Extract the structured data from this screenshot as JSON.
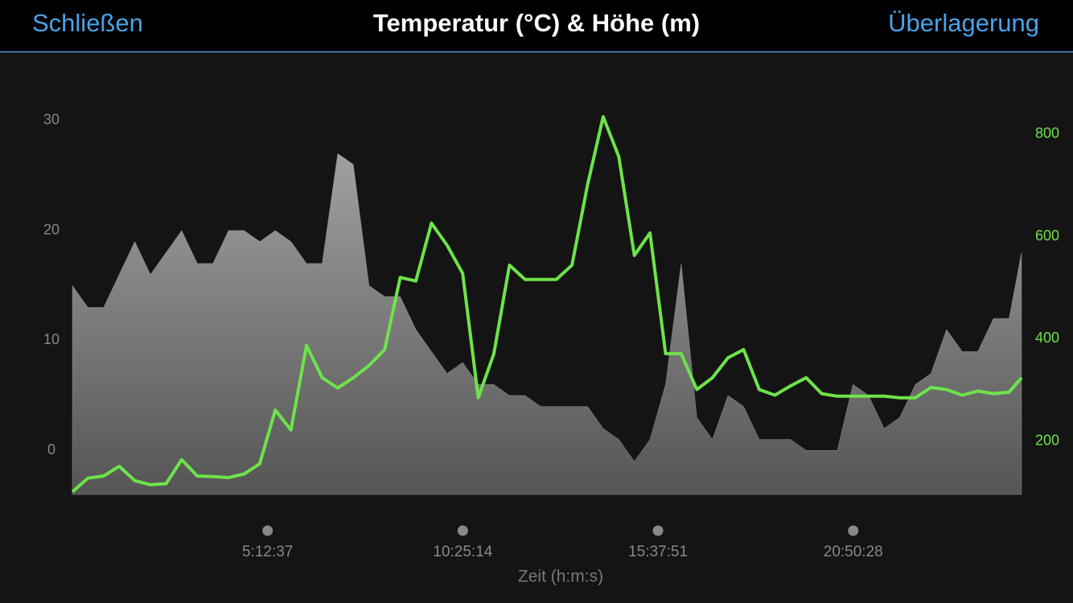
{
  "header": {
    "close": "Schließen",
    "overlay": "Überlagerung"
  },
  "chart_data": {
    "type": "line",
    "title": "Temperatur (°C) & Höhe (m)",
    "x_label": "Zeit (h:m:s)",
    "x": [
      0,
      1500,
      3000,
      4500,
      6000,
      7500,
      9000,
      10500,
      12000,
      13500,
      15000,
      16500,
      18000,
      19500,
      21000,
      22500,
      24000,
      25500,
      27000,
      28500,
      30000,
      31500,
      33000,
      34500,
      36000,
      37500,
      39000,
      40500,
      42000,
      43500,
      45000,
      46500,
      48000,
      49500,
      51000,
      52500,
      54000,
      55500,
      57000,
      58500,
      60000,
      61500,
      63000,
      64500,
      66000,
      67500,
      69000,
      70500,
      72000,
      73500,
      75000,
      76500,
      78000,
      79500,
      81000,
      82500,
      84000,
      85500,
      87000,
      88500,
      90000,
      91200
    ],
    "series": [
      {
        "type": "area",
        "color": "#8c8c8c",
        "values": [
          15,
          13,
          13,
          16,
          19,
          16,
          18,
          20,
          17,
          17,
          20,
          20,
          19,
          20,
          19,
          17,
          17,
          27,
          26,
          15,
          14,
          14,
          11,
          9,
          7,
          8,
          6,
          6,
          5,
          5,
          4,
          4,
          4,
          4,
          2,
          1,
          -1,
          1,
          6,
          17,
          3,
          1,
          5,
          4,
          1,
          1,
          1,
          0,
          0,
          0,
          6,
          5,
          2,
          3,
          6,
          7,
          11,
          9,
          9,
          12,
          12,
          18
        ]
      },
      {
        "type": "line",
        "color": "#6de34a",
        "axis": "y2",
        "values": [
          101,
          128,
          132,
          151,
          123,
          115,
          117,
          164,
          132,
          131,
          129,
          136,
          156,
          261,
          222,
          387,
          324,
          304,
          324,
          348,
          379,
          520,
          513,
          626,
          583,
          528,
          285,
          371,
          544,
          516,
          516,
          516,
          544,
          701,
          834,
          756,
          563,
          607,
          371,
          371,
          301,
          324,
          363,
          379,
          301,
          290,
          308,
          324,
          293,
          288,
          288,
          288,
          288,
          285,
          285,
          305,
          301,
          290,
          298,
          293,
          296,
          324
        ]
      }
    ],
    "xlim": [
      0,
      91200
    ],
    "xticks": [
      {
        "value": 18757,
        "label": "5:12:37"
      },
      {
        "value": 37514,
        "label": "10:25:14"
      },
      {
        "value": 56271,
        "label": "15:37:51"
      },
      {
        "value": 75028,
        "label": "20:50:28"
      }
    ],
    "ylim": [
      -4,
      35
    ],
    "yticks": [
      0,
      10,
      20,
      30
    ],
    "y2lim": [
      96,
      934
    ],
    "y2ticks": [
      200,
      400,
      600,
      800
    ],
    "y2_color": "#6de34a",
    "grid": false
  }
}
